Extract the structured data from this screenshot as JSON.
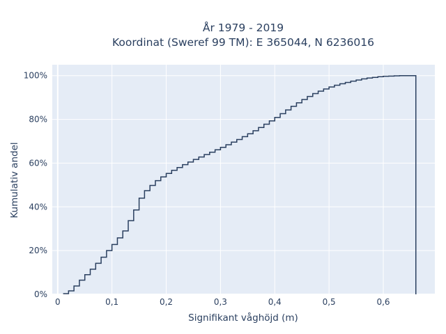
{
  "chart_data": {
    "type": "line",
    "line_shape": "step",
    "title_line1": "År 1979 - 2019",
    "title_line2": "Koordinat (Sweref 99 TM): E 365044, N 6236016",
    "xlabel": "Signifikant våghöjd (m)",
    "ylabel": "Kumulativ andel",
    "xlim": [
      -0.01,
      0.695
    ],
    "ylim": [
      0,
      1.05
    ],
    "x_ticks": [
      0,
      0.1,
      0.2,
      0.3,
      0.4,
      0.5,
      0.6
    ],
    "x_tick_labels": [
      "0",
      "0,1",
      "0,2",
      "0,3",
      "0,4",
      "0,5",
      "0,6"
    ],
    "y_ticks": [
      0,
      0.2,
      0.4,
      0.6,
      0.8,
      1.0
    ],
    "y_tick_labels": [
      "0%",
      "20%",
      "40%",
      "60%",
      "80%",
      "100%"
    ],
    "grid": true,
    "series": [
      {
        "x": [
          0.02,
          0.03,
          0.04,
          0.05,
          0.06,
          0.07,
          0.08,
          0.09,
          0.1,
          0.11,
          0.12,
          0.13,
          0.14,
          0.15,
          0.16,
          0.17,
          0.18,
          0.19,
          0.2,
          0.21,
          0.22,
          0.23,
          0.24,
          0.25,
          0.26,
          0.27,
          0.28,
          0.29,
          0.3,
          0.31,
          0.32,
          0.33,
          0.34,
          0.35,
          0.36,
          0.37,
          0.38,
          0.39,
          0.4,
          0.41,
          0.42,
          0.43,
          0.44,
          0.45,
          0.46,
          0.47,
          0.48,
          0.49,
          0.5,
          0.51,
          0.52,
          0.53,
          0.54,
          0.55,
          0.56,
          0.57,
          0.58,
          0.59,
          0.6,
          0.61,
          0.62,
          0.63,
          0.64,
          0.65,
          0.66
        ],
        "y": [
          0.003,
          0.016,
          0.038,
          0.065,
          0.09,
          0.115,
          0.142,
          0.17,
          0.2,
          0.228,
          0.258,
          0.29,
          0.337,
          0.386,
          0.44,
          0.474,
          0.498,
          0.52,
          0.537,
          0.553,
          0.567,
          0.58,
          0.593,
          0.605,
          0.617,
          0.628,
          0.639,
          0.65,
          0.661,
          0.672,
          0.684,
          0.696,
          0.708,
          0.721,
          0.734,
          0.748,
          0.763,
          0.778,
          0.793,
          0.809,
          0.826,
          0.843,
          0.86,
          0.876,
          0.891,
          0.905,
          0.918,
          0.929,
          0.939,
          0.948,
          0.956,
          0.963,
          0.969,
          0.975,
          0.98,
          0.985,
          0.989,
          0.992,
          0.995,
          0.997,
          0.998,
          0.999,
          1.0,
          1.0,
          1.0
        ],
        "color": "#2a3f5f"
      }
    ],
    "plot_bgcolor": "#e5ecf6",
    "grid_color": "#ffffff"
  }
}
